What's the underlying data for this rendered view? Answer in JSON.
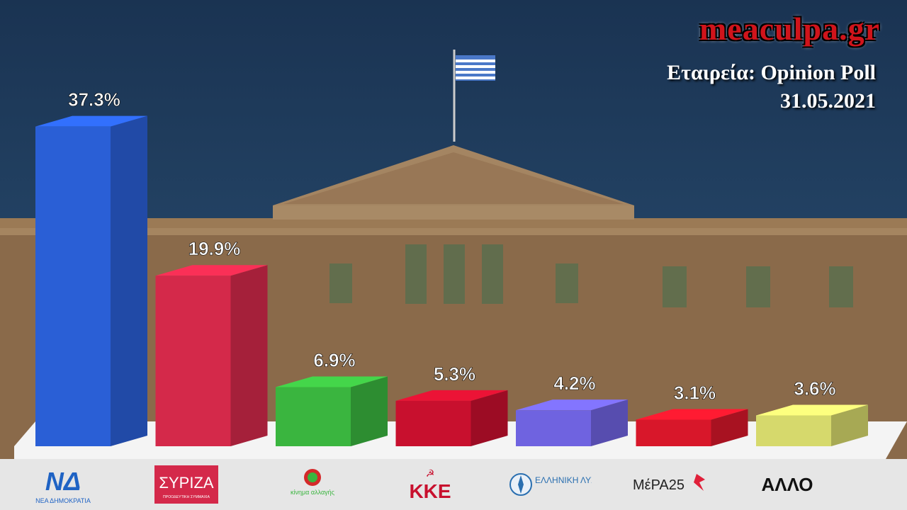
{
  "branding": {
    "site": "meaculpa.gr"
  },
  "poll": {
    "company": "Εταιρεία: Opinion Poll",
    "date": "31.05.2021"
  },
  "parties": [
    {
      "name": "ΝΕΑ ΔΗΜΟΚΡΑΤΙΑ",
      "logo_text": "ΝΔ"
    },
    {
      "name": "ΠΡΟΟΔΕΥΤΙΚΗ ΣΥΜΜΑΧΙΑ",
      "logo_text": "ΣΥΡΙΖΑ"
    },
    {
      "name": "κίνημα αλλαγής",
      "logo_text": ""
    },
    {
      "name": "",
      "logo_text": "ΚΚΕ"
    },
    {
      "name": "ΕΛΛΗΝΙΚΗ ΛΥΣΗ",
      "logo_text": ""
    },
    {
      "name": "",
      "logo_text": "ΜέΡΑ25"
    },
    {
      "name": "",
      "logo_text": "ΑΛΛΟ"
    }
  ],
  "colors": {
    "nd": "#2a5fd6",
    "syriza": "#d4294a",
    "kinal": "#3ab53f",
    "kke": "#c8102e",
    "elliniki_lysi": "#6f63e0",
    "mera25": "#d8172a",
    "allo": "#d6d96c"
  },
  "chart_data": {
    "type": "bar",
    "title": "",
    "xlabel": "",
    "ylabel": "",
    "categories": [
      "ΝΔ",
      "ΣΥΡΙΖΑ",
      "ΚΙΝΑΛ",
      "ΚΚΕ",
      "ΕΛΛΗΝΙΚΗ ΛΥΣΗ",
      "ΜέΡΑ25",
      "ΑΛΛΟ"
    ],
    "values": [
      37.3,
      19.9,
      6.9,
      5.3,
      4.2,
      3.1,
      3.6
    ],
    "value_labels": [
      "37.3%",
      "19.9%",
      "6.9%",
      "5.3%",
      "4.2%",
      "3.1%",
      "3.6%"
    ],
    "ylim": [
      0,
      40
    ],
    "grid": false,
    "legend": "none",
    "style": "3d"
  }
}
